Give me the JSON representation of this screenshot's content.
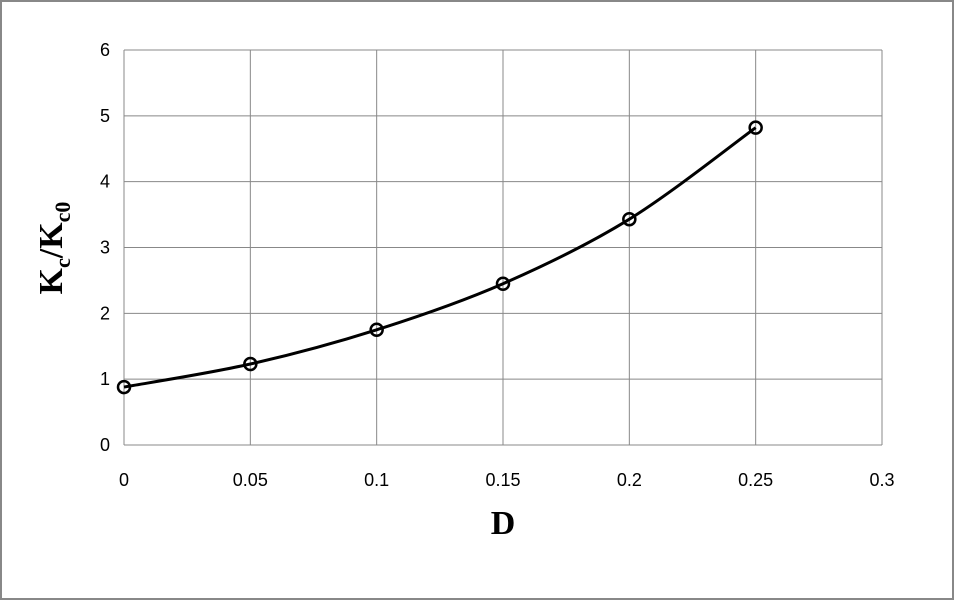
{
  "chart_data": {
    "type": "line",
    "x_label": "D",
    "y_label": [
      "K",
      "c",
      "/K",
      "c0"
    ],
    "x": [
      0,
      0.05,
      0.1,
      0.15,
      0.2,
      0.25
    ],
    "series": [
      {
        "color": "#000000",
        "values": [
          0.88,
          1.23,
          1.75,
          2.45,
          3.43,
          4.82
        ]
      }
    ],
    "xlim": [
      0,
      0.3
    ],
    "xticks": [
      0,
      0.05,
      0.1,
      0.15,
      0.2,
      0.25,
      0.3
    ],
    "ylim": [
      0,
      6
    ],
    "yticks": [
      0,
      1,
      2,
      3,
      4,
      5,
      6
    ],
    "grid": true,
    "smooth": true,
    "markers": true
  }
}
